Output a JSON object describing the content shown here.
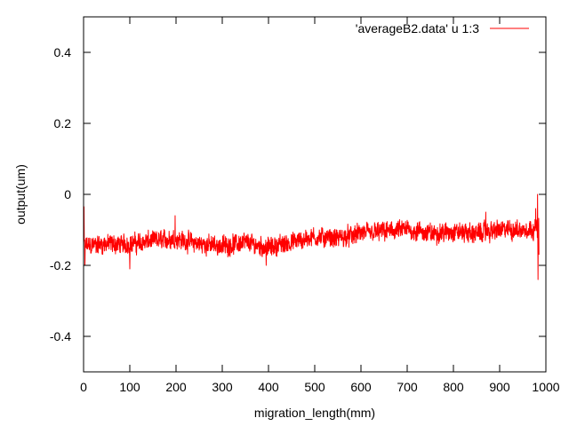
{
  "chart_data": {
    "type": "line",
    "title": "",
    "xlabel": "migration_length(mm)",
    "ylabel": "output(um)",
    "xlim": [
      0,
      1000
    ],
    "ylim": [
      -0.5,
      0.5
    ],
    "xticks": [
      0,
      100,
      200,
      300,
      400,
      500,
      600,
      700,
      800,
      900,
      1000
    ],
    "xtick_labels": [
      "0",
      "100",
      "200",
      "300",
      "400",
      "500",
      "600",
      "700",
      "800",
      "900",
      "1000"
    ],
    "yticks": [
      -0.4,
      -0.2,
      0,
      0.2,
      0.4
    ],
    "ytick_labels": [
      "-0.4",
      "-0.2",
      "0",
      "0.2",
      "0.4"
    ],
    "grid": false,
    "legend_position": "top-right",
    "series": [
      {
        "name": "'averageB2.data' u 1:3",
        "color": "#ff0000",
        "x_range": [
          0,
          985
        ],
        "x_step": 0.5,
        "trend": {
          "x": [
            0,
            50,
            100,
            150,
            200,
            250,
            300,
            350,
            400,
            450,
            500,
            550,
            600,
            650,
            700,
            750,
            800,
            850,
            900,
            950,
            980
          ],
          "y": [
            -0.145,
            -0.14,
            -0.14,
            -0.13,
            -0.125,
            -0.14,
            -0.145,
            -0.135,
            -0.15,
            -0.135,
            -0.12,
            -0.125,
            -0.11,
            -0.105,
            -0.1,
            -0.11,
            -0.105,
            -0.11,
            -0.1,
            -0.1,
            -0.095
          ]
        },
        "noise_amplitude": 0.022,
        "spikes": [
          {
            "x": 1,
            "y": -0.035
          },
          {
            "x": 3,
            "y": -0.2
          },
          {
            "x": 100,
            "y": -0.21
          },
          {
            "x": 198,
            "y": -0.06
          },
          {
            "x": 395,
            "y": -0.2
          },
          {
            "x": 870,
            "y": -0.05
          },
          {
            "x": 978,
            "y": -0.04
          },
          {
            "x": 982,
            "y": 0.0
          },
          {
            "x": 983,
            "y": -0.24
          },
          {
            "x": 985,
            "y": -0.17
          }
        ]
      }
    ]
  }
}
